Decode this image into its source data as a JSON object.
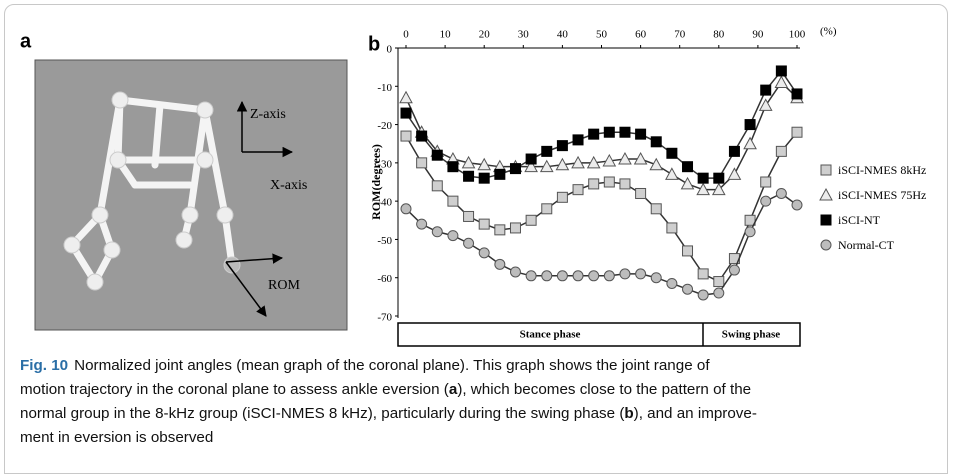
{
  "panel_a": {
    "label": "a",
    "z_axis": "Z-axis",
    "x_axis": "X-axis",
    "rom": "ROM"
  },
  "chart_data": {
    "type": "line",
    "panel_label": "b",
    "xlabel": "(%)",
    "ylabel": "ROM(degrees)",
    "x": [
      0,
      4,
      8,
      12,
      16,
      20,
      24,
      28,
      32,
      36,
      40,
      44,
      48,
      52,
      56,
      60,
      64,
      68,
      72,
      76,
      80,
      84,
      88,
      92,
      96,
      100
    ],
    "series": [
      {
        "name": "iSCI-NMES 8kHz",
        "color": "#cfcfcf",
        "marker": "square",
        "values": [
          -23,
          -30,
          -36,
          -40,
          -44,
          -46,
          -47.5,
          -47,
          -45,
          -42,
          -39,
          -37,
          -35.5,
          -35,
          -35.5,
          -38,
          -42,
          -47,
          -53,
          -59,
          -61,
          -55,
          -45,
          -35,
          -27,
          -22
        ]
      },
      {
        "name": "iSCI-NMES 75Hz",
        "color": "#ececec",
        "marker": "triangle",
        "values": [
          -13,
          -22,
          -27,
          -29,
          -30,
          -30.5,
          -31,
          -31,
          -31,
          -31,
          -30.5,
          -30,
          -30,
          -29.5,
          -29,
          -29,
          -30.5,
          -33,
          -35.5,
          -37,
          -37,
          -33,
          -25,
          -15,
          -9,
          -13
        ]
      },
      {
        "name": "iSCI-NT",
        "color": "#000000",
        "marker": "square",
        "values": [
          -17,
          -23,
          -28,
          -31,
          -33.5,
          -34,
          -33,
          -31.5,
          -29,
          -27,
          -25.5,
          -24,
          -22.5,
          -22,
          -22,
          -22.5,
          -24.5,
          -27.5,
          -31,
          -34,
          -34,
          -27,
          -20,
          -11,
          -6,
          -12
        ]
      },
      {
        "name": "Normal-CT",
        "color": "#bdbdbd",
        "marker": "circle",
        "values": [
          -42,
          -46,
          -48,
          -49,
          -51,
          -53.5,
          -56.5,
          -58.5,
          -59.5,
          -59.5,
          -59.5,
          -59.5,
          -59.5,
          -59.5,
          -59,
          -59,
          -60,
          -61.5,
          -63,
          -64.5,
          -64,
          -58,
          -48,
          -40,
          -38,
          -41
        ]
      }
    ],
    "xlim": [
      0,
      100
    ],
    "xticks": [
      0,
      10,
      20,
      30,
      40,
      50,
      60,
      70,
      80,
      90,
      100
    ],
    "ylim": [
      -70,
      0
    ],
    "yticks": [
      0,
      -10,
      -20,
      -30,
      -40,
      -50,
      -60,
      -70
    ],
    "phases": [
      "Stance phase",
      "Swing phase"
    ]
  },
  "caption": {
    "label": "Fig. 10",
    "lines": [
      [
        "Normalized joint angles (mean graph of the coronal plane). This graph shows the joint range of"
      ],
      [
        "motion trajectory in the coronal plane to assess ankle eversion (",
        "a",
        "), which becomes close to the pattern of the"
      ],
      [
        "normal group in the 8-kHz group (iSCI-NMES 8 kHz), particularly during the swing phase (",
        "b",
        "), and an improve-"
      ],
      [
        "ment in eversion is observed"
      ]
    ]
  }
}
